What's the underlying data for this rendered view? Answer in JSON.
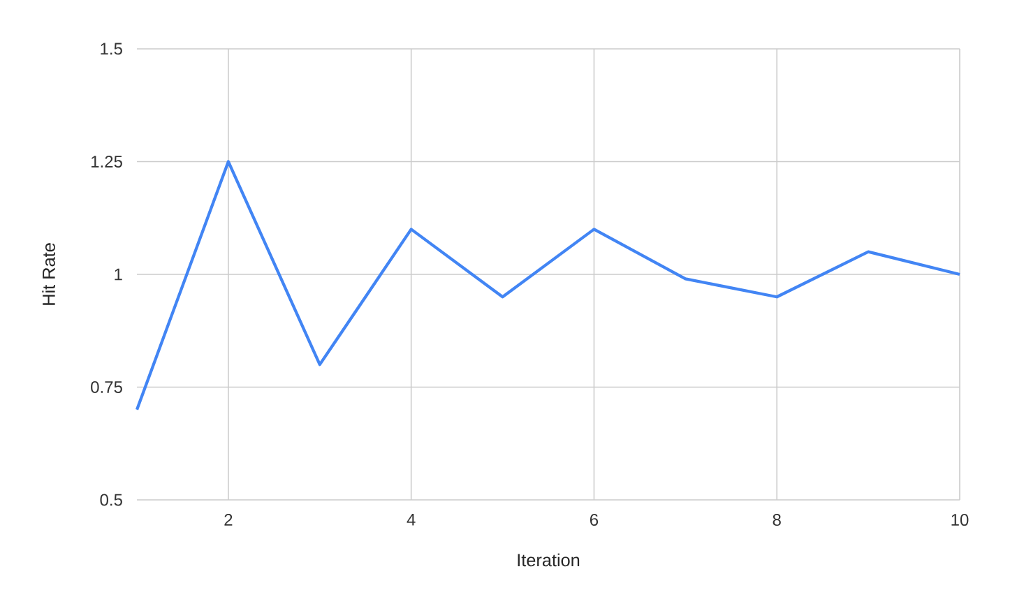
{
  "chart_data": {
    "type": "line",
    "xlabel": "Iteration",
    "ylabel": "Hit Rate",
    "x": [
      1,
      2,
      3,
      4,
      5,
      6,
      7,
      8,
      9,
      10
    ],
    "values": [
      0.7,
      1.25,
      0.8,
      1.1,
      0.95,
      1.1,
      0.99,
      0.95,
      1.05,
      1.0
    ],
    "color": "#4285f4",
    "xlim": [
      1,
      10
    ],
    "xticks": [
      2,
      4,
      6,
      8,
      10
    ],
    "ylim": [
      0.5,
      1.5
    ],
    "yticks": [
      0.5,
      0.75,
      1,
      1.25,
      1.5
    ],
    "grid": true,
    "line_style": "solid"
  }
}
